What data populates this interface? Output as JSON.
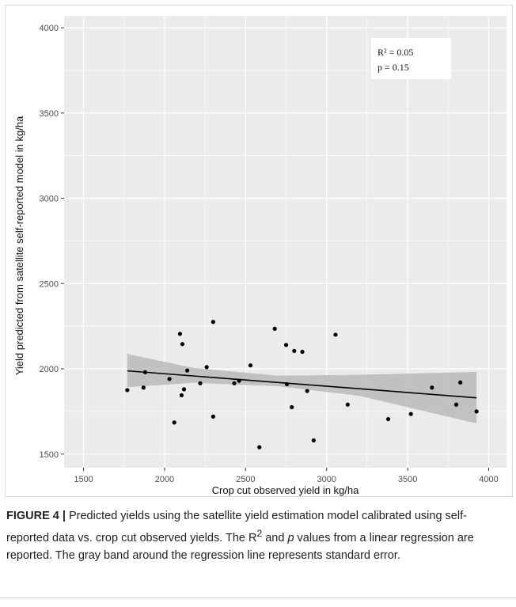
{
  "chart_data": {
    "type": "scatter",
    "xlabel": "Crop cut observed yield in kg/ha",
    "ylabel": "Yield predicted from satellite self-reported model in kg/ha",
    "xlim": [
      1380,
      4110
    ],
    "ylim": [
      1420,
      4070
    ],
    "xticks": [
      1500,
      2000,
      2500,
      3000,
      3500,
      4000
    ],
    "yticks": [
      1500,
      2000,
      2500,
      3000,
      3500,
      4000
    ],
    "grid": true,
    "background": "#ebebeb",
    "annotation": {
      "line1": "R² = 0.05",
      "line2": "p = 0.15"
    },
    "points": [
      {
        "x": 1770,
        "y": 1875
      },
      {
        "x": 1870,
        "y": 1890
      },
      {
        "x": 1880,
        "y": 1980
      },
      {
        "x": 2030,
        "y": 1940
      },
      {
        "x": 2060,
        "y": 1685
      },
      {
        "x": 2095,
        "y": 2205
      },
      {
        "x": 2105,
        "y": 1845
      },
      {
        "x": 2110,
        "y": 2145
      },
      {
        "x": 2120,
        "y": 1880
      },
      {
        "x": 2140,
        "y": 1990
      },
      {
        "x": 2220,
        "y": 1915
      },
      {
        "x": 2260,
        "y": 2010
      },
      {
        "x": 2300,
        "y": 2275
      },
      {
        "x": 2300,
        "y": 1720
      },
      {
        "x": 2430,
        "y": 1915
      },
      {
        "x": 2460,
        "y": 1930
      },
      {
        "x": 2530,
        "y": 2020
      },
      {
        "x": 2585,
        "y": 1540
      },
      {
        "x": 2680,
        "y": 2235
      },
      {
        "x": 2750,
        "y": 2140
      },
      {
        "x": 2755,
        "y": 1910
      },
      {
        "x": 2785,
        "y": 1775
      },
      {
        "x": 2800,
        "y": 2105
      },
      {
        "x": 2850,
        "y": 2100
      },
      {
        "x": 2880,
        "y": 1870
      },
      {
        "x": 2920,
        "y": 1580
      },
      {
        "x": 3055,
        "y": 2200
      },
      {
        "x": 3130,
        "y": 1790
      },
      {
        "x": 3380,
        "y": 1705
      },
      {
        "x": 3520,
        "y": 1735
      },
      {
        "x": 3650,
        "y": 1890
      },
      {
        "x": 3800,
        "y": 1790
      },
      {
        "x": 3825,
        "y": 1920
      },
      {
        "x": 3925,
        "y": 1750
      }
    ],
    "regression": {
      "x": [
        1770,
        3925
      ],
      "y": [
        1988,
        1830
      ]
    },
    "confidence_band": {
      "x": [
        1770,
        2180,
        2700,
        3200,
        3925
      ],
      "lower": [
        1892,
        1918,
        1898,
        1842,
        1680
      ],
      "upper": [
        2088,
        2005,
        1960,
        1965,
        1982
      ]
    },
    "colors": {
      "points": "#000000",
      "line": "#000000",
      "band": "#bdbdbd",
      "grid": "#ffffff",
      "ticks": "#4d4d4d"
    }
  },
  "caption": {
    "label": "FIGURE 4 |",
    "seg1": " Predicted yields using the satellite yield estimation model calibrated using self-reported data vs. crop cut observed yields. The R",
    "sup": "2",
    "seg2": " and ",
    "ital": "p",
    "seg3": " values from a linear regression are reported. The gray band around the regression line represents standard error."
  }
}
